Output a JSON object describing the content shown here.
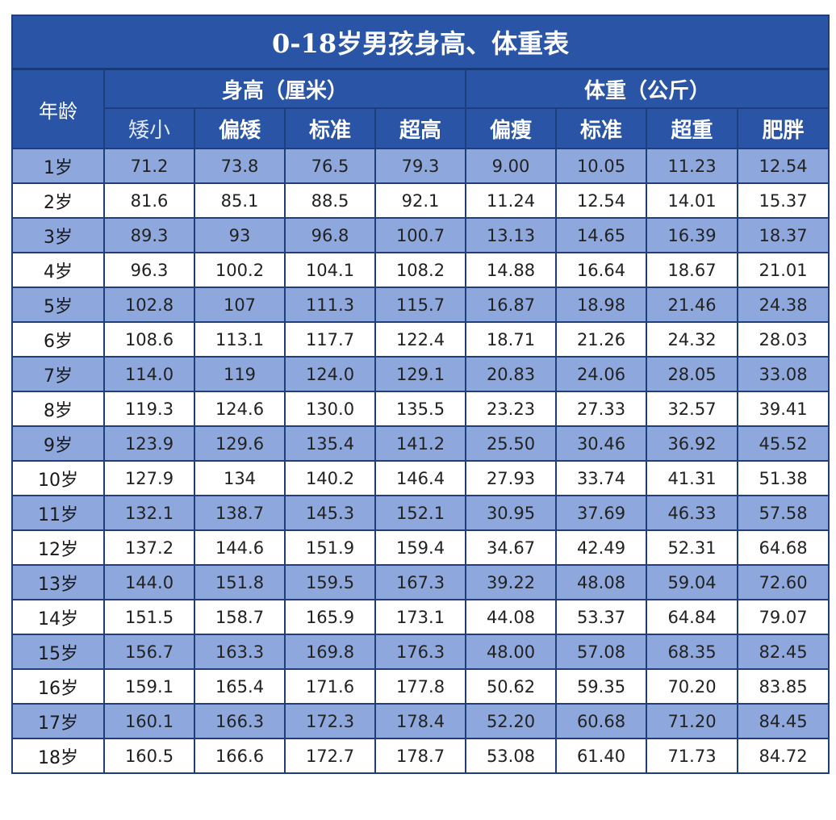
{
  "title": "0-18岁男孩身高、体重表",
  "age_header": "年龄",
  "groups": {
    "height": "身高（厘米）",
    "weight": "体重（公斤）"
  },
  "subheaders": [
    "矮小",
    "偏矮",
    "标准",
    "超高",
    "偏瘦",
    "标准",
    "超重",
    "肥胖"
  ],
  "rows": [
    {
      "age": "1岁",
      "values": [
        "71.2",
        "73.8",
        "76.5",
        "79.3",
        "9.00",
        "10.05",
        "11.23",
        "12.54"
      ]
    },
    {
      "age": "2岁",
      "values": [
        "81.6",
        "85.1",
        "88.5",
        "92.1",
        "11.24",
        "12.54",
        "14.01",
        "15.37"
      ]
    },
    {
      "age": "3岁",
      "values": [
        "89.3",
        "93",
        "96.8",
        "100.7",
        "13.13",
        "14.65",
        "16.39",
        "18.37"
      ]
    },
    {
      "age": "4岁",
      "values": [
        "96.3",
        "100.2",
        "104.1",
        "108.2",
        "14.88",
        "16.64",
        "18.67",
        "21.01"
      ]
    },
    {
      "age": "5岁",
      "values": [
        "102.8",
        "107",
        "111.3",
        "115.7",
        "16.87",
        "18.98",
        "21.46",
        "24.38"
      ]
    },
    {
      "age": "6岁",
      "values": [
        "108.6",
        "113.1",
        "117.7",
        "122.4",
        "18.71",
        "21.26",
        "24.32",
        "28.03"
      ]
    },
    {
      "age": "7岁",
      "values": [
        "114.0",
        "119",
        "124.0",
        "129.1",
        "20.83",
        "24.06",
        "28.05",
        "33.08"
      ]
    },
    {
      "age": "8岁",
      "values": [
        "119.3",
        "124.6",
        "130.0",
        "135.5",
        "23.23",
        "27.33",
        "32.57",
        "39.41"
      ]
    },
    {
      "age": "9岁",
      "values": [
        "123.9",
        "129.6",
        "135.4",
        "141.2",
        "25.50",
        "30.46",
        "36.92",
        "45.52"
      ]
    },
    {
      "age": "10岁",
      "values": [
        "127.9",
        "134",
        "140.2",
        "146.4",
        "27.93",
        "33.74",
        "41.31",
        "51.38"
      ]
    },
    {
      "age": "11岁",
      "values": [
        "132.1",
        "138.7",
        "145.3",
        "152.1",
        "30.95",
        "37.69",
        "46.33",
        "57.58"
      ]
    },
    {
      "age": "12岁",
      "values": [
        "137.2",
        "144.6",
        "151.9",
        "159.4",
        "34.67",
        "42.49",
        "52.31",
        "64.68"
      ]
    },
    {
      "age": "13岁",
      "values": [
        "144.0",
        "151.8",
        "159.5",
        "167.3",
        "39.22",
        "48.08",
        "59.04",
        "72.60"
      ]
    },
    {
      "age": "14岁",
      "values": [
        "151.5",
        "158.7",
        "165.9",
        "173.1",
        "44.08",
        "53.37",
        "64.84",
        "79.07"
      ]
    },
    {
      "age": "15岁",
      "values": [
        "156.7",
        "163.3",
        "169.8",
        "176.3",
        "48.00",
        "57.08",
        "68.35",
        "82.45"
      ]
    },
    {
      "age": "16岁",
      "values": [
        "159.1",
        "165.4",
        "171.6",
        "177.8",
        "50.62",
        "59.35",
        "70.20",
        "83.85"
      ]
    },
    {
      "age": "17岁",
      "values": [
        "160.1",
        "166.3",
        "172.3",
        "178.4",
        "52.20",
        "60.68",
        "71.20",
        "84.45"
      ]
    },
    {
      "age": "18岁",
      "values": [
        "160.5",
        "166.6",
        "172.7",
        "178.7",
        "53.08",
        "61.40",
        "71.73",
        "84.72"
      ]
    }
  ],
  "colors": {
    "header_blue": "#2a55a7",
    "row_blue": "#8ea8dd",
    "border": "#1f3f7c"
  }
}
